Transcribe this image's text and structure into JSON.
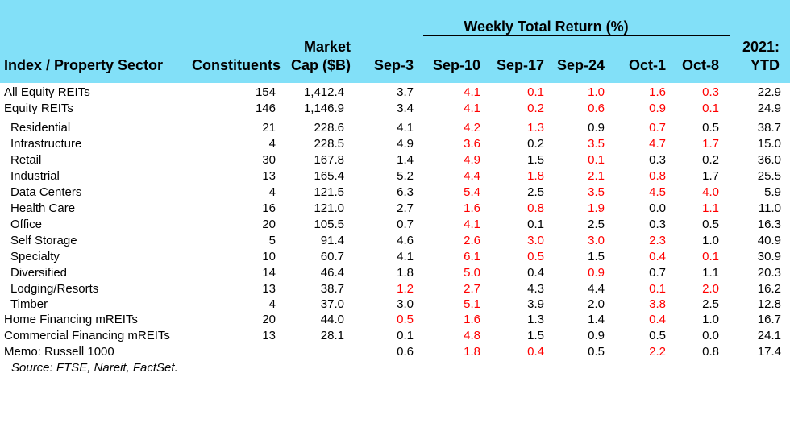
{
  "chart_data": {
    "type": "table",
    "title": "Weekly Total Return (%)",
    "columns": {
      "name": "Index / Property Sector",
      "constituents": "Constituents",
      "mcap_line1": "Market",
      "mcap_line2": "Cap ($B)",
      "weeks": [
        "Sep-3",
        "Sep-10",
        "Sep-17",
        "Sep-24",
        "Oct-1",
        "Oct-8"
      ],
      "ytd_line1": "2021:",
      "ytd_line2": "YTD"
    },
    "rows": [
      {
        "name": "All Equity REITs",
        "indent": 0,
        "constituents": "154",
        "mcap": "1,412.4",
        "weeks": [
          {
            "v": "3.7",
            "neg": false
          },
          {
            "v": "4.1",
            "neg": true
          },
          {
            "v": "0.1",
            "neg": true
          },
          {
            "v": "1.0",
            "neg": true
          },
          {
            "v": "1.6",
            "neg": true
          },
          {
            "v": "0.3",
            "neg": true
          }
        ],
        "ytd": "22.9"
      },
      {
        "name": "Equity REITs",
        "indent": 0,
        "constituents": "146",
        "mcap": "1,146.9",
        "weeks": [
          {
            "v": "3.4",
            "neg": false
          },
          {
            "v": "4.1",
            "neg": true
          },
          {
            "v": "0.2",
            "neg": true
          },
          {
            "v": "0.6",
            "neg": true
          },
          {
            "v": "0.9",
            "neg": true
          },
          {
            "v": "0.1",
            "neg": true
          }
        ],
        "ytd": "24.9"
      },
      {
        "name": "Residential",
        "indent": 1,
        "constituents": "21",
        "mcap": "228.6",
        "weeks": [
          {
            "v": "4.1",
            "neg": false
          },
          {
            "v": "4.2",
            "neg": true
          },
          {
            "v": "1.3",
            "neg": true
          },
          {
            "v": "0.9",
            "neg": false
          },
          {
            "v": "0.7",
            "neg": true
          },
          {
            "v": "0.5",
            "neg": false
          }
        ],
        "ytd": "38.7"
      },
      {
        "name": "Infrastructure",
        "indent": 1,
        "constituents": "4",
        "mcap": "228.5",
        "weeks": [
          {
            "v": "4.9",
            "neg": false
          },
          {
            "v": "3.6",
            "neg": true
          },
          {
            "v": "0.2",
            "neg": false
          },
          {
            "v": "3.5",
            "neg": true
          },
          {
            "v": "4.7",
            "neg": true
          },
          {
            "v": "1.7",
            "neg": true
          }
        ],
        "ytd": "15.0"
      },
      {
        "name": "Retail",
        "indent": 1,
        "constituents": "30",
        "mcap": "167.8",
        "weeks": [
          {
            "v": "1.4",
            "neg": false
          },
          {
            "v": "4.9",
            "neg": true
          },
          {
            "v": "1.5",
            "neg": false
          },
          {
            "v": "0.1",
            "neg": true
          },
          {
            "v": "0.3",
            "neg": false
          },
          {
            "v": "0.2",
            "neg": false
          }
        ],
        "ytd": "36.0"
      },
      {
        "name": "Industrial",
        "indent": 1,
        "constituents": "13",
        "mcap": "165.4",
        "weeks": [
          {
            "v": "5.2",
            "neg": false
          },
          {
            "v": "4.4",
            "neg": true
          },
          {
            "v": "1.8",
            "neg": true
          },
          {
            "v": "2.1",
            "neg": true
          },
          {
            "v": "0.8",
            "neg": true
          },
          {
            "v": "1.7",
            "neg": false
          }
        ],
        "ytd": "25.5"
      },
      {
        "name": "Data Centers",
        "indent": 1,
        "constituents": "4",
        "mcap": "121.5",
        "weeks": [
          {
            "v": "6.3",
            "neg": false
          },
          {
            "v": "5.4",
            "neg": true
          },
          {
            "v": "2.5",
            "neg": false
          },
          {
            "v": "3.5",
            "neg": true
          },
          {
            "v": "4.5",
            "neg": true
          },
          {
            "v": "4.0",
            "neg": true
          }
        ],
        "ytd": "5.9"
      },
      {
        "name": "Health Care",
        "indent": 1,
        "constituents": "16",
        "mcap": "121.0",
        "weeks": [
          {
            "v": "2.7",
            "neg": false
          },
          {
            "v": "1.6",
            "neg": true
          },
          {
            "v": "0.8",
            "neg": true
          },
          {
            "v": "1.9",
            "neg": true
          },
          {
            "v": "0.0",
            "neg": false
          },
          {
            "v": "1.1",
            "neg": true
          }
        ],
        "ytd": "11.0"
      },
      {
        "name": "Office",
        "indent": 1,
        "constituents": "20",
        "mcap": "105.5",
        "weeks": [
          {
            "v": "0.7",
            "neg": false
          },
          {
            "v": "4.1",
            "neg": true
          },
          {
            "v": "0.1",
            "neg": false
          },
          {
            "v": "2.5",
            "neg": false
          },
          {
            "v": "0.3",
            "neg": false
          },
          {
            "v": "0.5",
            "neg": false
          }
        ],
        "ytd": "16.3"
      },
      {
        "name": "Self Storage",
        "indent": 1,
        "constituents": "5",
        "mcap": "91.4",
        "weeks": [
          {
            "v": "4.6",
            "neg": false
          },
          {
            "v": "2.6",
            "neg": true
          },
          {
            "v": "3.0",
            "neg": true
          },
          {
            "v": "3.0",
            "neg": true
          },
          {
            "v": "2.3",
            "neg": true
          },
          {
            "v": "1.0",
            "neg": false
          }
        ],
        "ytd": "40.9"
      },
      {
        "name": "Specialty",
        "indent": 1,
        "constituents": "10",
        "mcap": "60.7",
        "weeks": [
          {
            "v": "4.1",
            "neg": false
          },
          {
            "v": "6.1",
            "neg": true
          },
          {
            "v": "0.5",
            "neg": true
          },
          {
            "v": "1.5",
            "neg": false
          },
          {
            "v": "0.4",
            "neg": true
          },
          {
            "v": "0.1",
            "neg": true
          }
        ],
        "ytd": "30.9"
      },
      {
        "name": "Diversified",
        "indent": 1,
        "constituents": "14",
        "mcap": "46.4",
        "weeks": [
          {
            "v": "1.8",
            "neg": false
          },
          {
            "v": "5.0",
            "neg": true
          },
          {
            "v": "0.4",
            "neg": false
          },
          {
            "v": "0.9",
            "neg": true
          },
          {
            "v": "0.7",
            "neg": false
          },
          {
            "v": "1.1",
            "neg": false
          }
        ],
        "ytd": "20.3"
      },
      {
        "name": "Lodging/Resorts",
        "indent": 1,
        "constituents": "13",
        "mcap": "38.7",
        "weeks": [
          {
            "v": "1.2",
            "neg": true
          },
          {
            "v": "2.7",
            "neg": true
          },
          {
            "v": "4.3",
            "neg": false
          },
          {
            "v": "4.4",
            "neg": false
          },
          {
            "v": "0.1",
            "neg": true
          },
          {
            "v": "2.0",
            "neg": true
          }
        ],
        "ytd": "16.2"
      },
      {
        "name": "Timber",
        "indent": 1,
        "constituents": "4",
        "mcap": "37.0",
        "weeks": [
          {
            "v": "3.0",
            "neg": false
          },
          {
            "v": "5.1",
            "neg": true
          },
          {
            "v": "3.9",
            "neg": false
          },
          {
            "v": "2.0",
            "neg": false
          },
          {
            "v": "3.8",
            "neg": true
          },
          {
            "v": "2.5",
            "neg": false
          }
        ],
        "ytd": "12.8"
      },
      {
        "name": "Home Financing mREITs",
        "indent": 0,
        "constituents": "20",
        "mcap": "44.0",
        "weeks": [
          {
            "v": "0.5",
            "neg": true
          },
          {
            "v": "1.6",
            "neg": true
          },
          {
            "v": "1.3",
            "neg": false
          },
          {
            "v": "1.4",
            "neg": false
          },
          {
            "v": "0.4",
            "neg": true
          },
          {
            "v": "1.0",
            "neg": false
          }
        ],
        "ytd": "16.7"
      },
      {
        "name": "Commercial Financing mREITs",
        "indent": 0,
        "constituents": "13",
        "mcap": "28.1",
        "weeks": [
          {
            "v": "0.1",
            "neg": false
          },
          {
            "v": "4.8",
            "neg": true
          },
          {
            "v": "1.5",
            "neg": false
          },
          {
            "v": "0.9",
            "neg": false
          },
          {
            "v": "0.5",
            "neg": false
          },
          {
            "v": "0.0",
            "neg": false
          }
        ],
        "ytd": "24.1"
      },
      {
        "name": "Memo: Russell 1000",
        "indent": 0,
        "constituents": "",
        "mcap": "",
        "weeks": [
          {
            "v": "0.6",
            "neg": false
          },
          {
            "v": "1.8",
            "neg": true
          },
          {
            "v": "0.4",
            "neg": true
          },
          {
            "v": "0.5",
            "neg": false
          },
          {
            "v": "2.2",
            "neg": true
          },
          {
            "v": "0.8",
            "neg": false
          }
        ],
        "ytd": "17.4"
      }
    ],
    "source": "Source: FTSE, Nareit, FactSet.",
    "colors": {
      "header_bg": "#82e0f8",
      "negative": "#ff0000",
      "text": "#000000"
    }
  }
}
